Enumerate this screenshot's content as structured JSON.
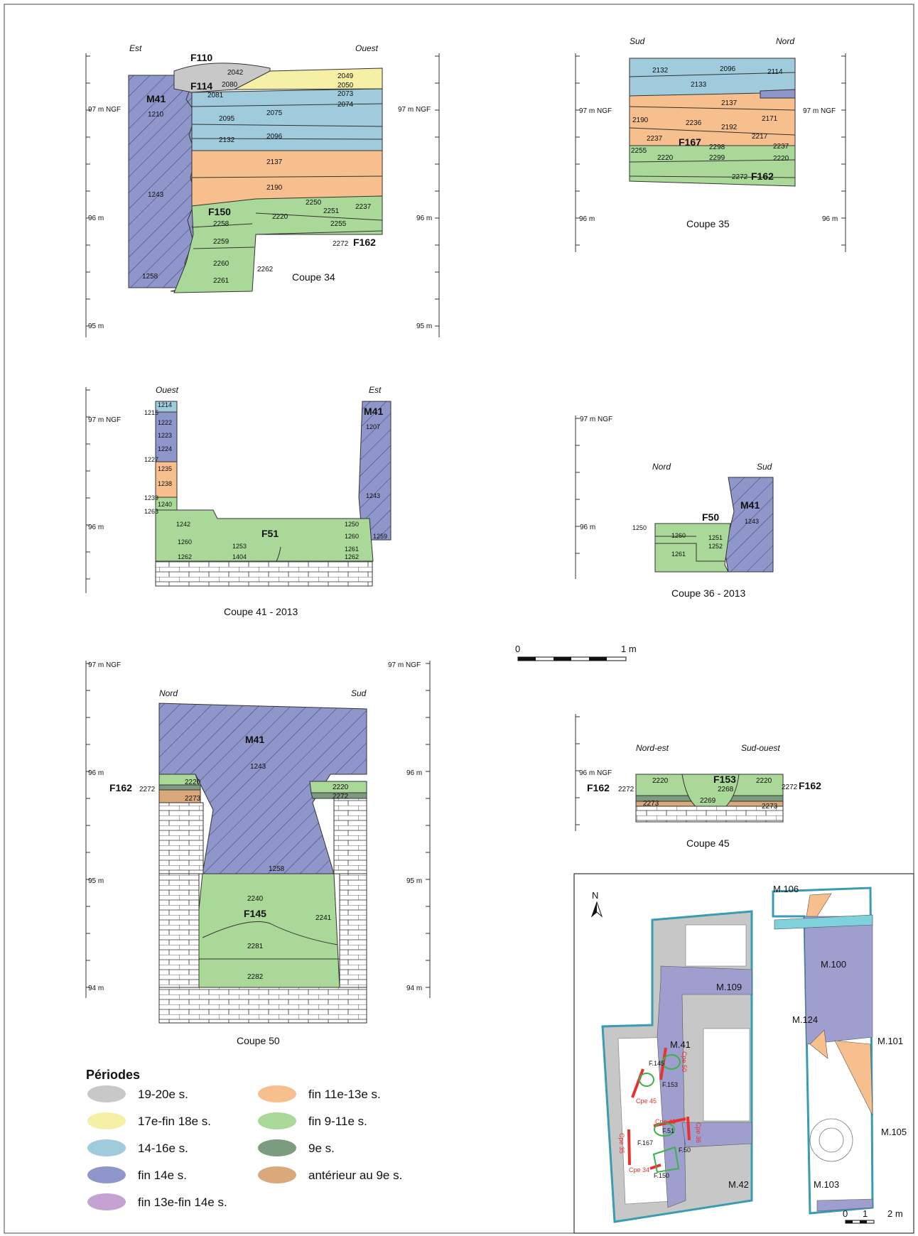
{
  "colors": {
    "p19_20": "#c8c8c8",
    "p17_18": "#f5f0a6",
    "p14_16": "#9fcbdc",
    "p14": "#8f96c9",
    "p13_14": "#c4a3d3",
    "p11_13": "#f8bf8e",
    "p9_11": "#a9d898",
    "p9": "#7d9b7f",
    "pAnt": "#d9a97b",
    "plan_gray": "#c7c7c7",
    "plan_wall": "#9e9fce",
    "plan_frame": "#3a9bb5",
    "cut_red": "#e8322f"
  },
  "coupe34": {
    "caption": "Coupe 34",
    "west": "Est",
    "east": "Ouest",
    "axis": {
      "l97": "97 m NGF",
      "l96": "96 m",
      "l95": "95 m",
      "r97": "97 m NGF",
      "r96": "96 m",
      "r95": "95 m"
    },
    "features": {
      "f110": "F110",
      "f114": "F114",
      "m41": "M41",
      "f150": "F150",
      "f162": "F162"
    },
    "us": [
      "2042",
      "2080",
      "2081",
      "2049",
      "2050",
      "2073",
      "2074",
      "1210",
      "2095",
      "2075",
      "2096",
      "2132",
      "2137",
      "1243",
      "2190",
      "2250",
      "2251",
      "2237",
      "2220",
      "2258",
      "2255",
      "2259",
      "2272",
      "2260",
      "2262",
      "1258",
      "2261"
    ]
  },
  "coupe35": {
    "caption": "Coupe 35",
    "west": "Sud",
    "east": "Nord",
    "axis": {
      "l97": "97 m NGF",
      "l96": "96 m",
      "r97": "97 m NGF",
      "r96": "96 m"
    },
    "features": {
      "f167": "F167",
      "f162": "F162"
    },
    "us": [
      "2132",
      "2096",
      "2114",
      "2133",
      "2137",
      "2190",
      "2236",
      "2192",
      "2171",
      "2237",
      "2217",
      "2298",
      "2237",
      "2255",
      "2220",
      "2299",
      "2220",
      "2272"
    ]
  },
  "coupe41": {
    "caption": "Coupe 41 - 2013",
    "west": "Ouest",
    "east": "Est",
    "axis": {
      "l97": "97 m NGF",
      "l96": "96 m"
    },
    "features": {
      "m41": "M41",
      "f51": "F51"
    },
    "us": [
      "1214",
      "1215",
      "1222",
      "1223",
      "1224",
      "1227",
      "1235",
      "1238",
      "1239",
      "1240",
      "1263",
      "1207",
      "1243",
      "1242",
      "1250",
      "1260",
      "1260",
      "1253",
      "1261",
      "1262",
      "1404",
      "1262",
      "1259"
    ]
  },
  "coupe36": {
    "caption": "Coupe 36 - 2013",
    "west": "Nord",
    "east": "Sud",
    "axis": {
      "l97": "97 m NGF",
      "l96": "96 m"
    },
    "features": {
      "f50": "F50",
      "m41": "M41"
    },
    "us": [
      "1250",
      "1243",
      "1260",
      "1251",
      "1252",
      "1261"
    ]
  },
  "scale": {
    "zero": "0",
    "one": "1 m"
  },
  "coupe50": {
    "caption": "Coupe 50",
    "west": "Nord",
    "east": "Sud",
    "axis": {
      "l97": "97 m NGF",
      "l96": "96 m",
      "l95": "95 m",
      "l94": "94 m",
      "r97": "97 m NGF",
      "r96": "96 m",
      "r95": "95 m",
      "r94": "94 m"
    },
    "features": {
      "m41": "M41",
      "f162": "F162",
      "f145": "F145"
    },
    "us": [
      "1243",
      "2220",
      "2272",
      "2273",
      "2220",
      "2272",
      "1258",
      "2240",
      "2241",
      "2281",
      "2282"
    ]
  },
  "coupe45": {
    "caption": "Coupe 45",
    "west": "Nord-est",
    "east": "Sud-ouest",
    "axis": {
      "l96": "96 m NGF"
    },
    "features": {
      "f153": "F153",
      "f162a": "F162",
      "f162b": "F162"
    },
    "us": [
      "2220",
      "2268",
      "2220",
      "2272",
      "2272",
      "2273",
      "2269",
      "2273"
    ]
  },
  "legend": {
    "title": "Périodes",
    "items": [
      {
        "label": "19-20e s.",
        "color": "#c8c8c8"
      },
      {
        "label": "17e-fin 18e s.",
        "color": "#f5f0a6"
      },
      {
        "label": "14-16e s.",
        "color": "#9fcbdc"
      },
      {
        "label": "fin 14e s.",
        "color": "#8f96c9"
      },
      {
        "label": "fin 13e-fin 14e s.",
        "color": "#c4a3d3"
      },
      {
        "label": "fin 11e-13e s.",
        "color": "#f8bf8e"
      },
      {
        "label": "fin 9-11e s.",
        "color": "#a9d898"
      },
      {
        "label": "9e s.",
        "color": "#7d9b7f"
      },
      {
        "label": "antérieur au 9e s.",
        "color": "#d9a97b"
      }
    ]
  },
  "plan": {
    "north": "N",
    "walls": [
      "M.106",
      "M.100",
      "M.109",
      "M.124",
      "M.41",
      "M.101",
      "M.105",
      "M.42",
      "M.103"
    ],
    "features": [
      "F.145",
      "F.153",
      "F.51",
      "F.167",
      "F.50",
      "F.150"
    ],
    "cuts": [
      "Cpe 50",
      "Cpe 45",
      "Cpe 41",
      "Cpe 36",
      "Cpe 35",
      "Cpe 34"
    ],
    "scale": [
      "0",
      "1",
      "2 m"
    ]
  }
}
